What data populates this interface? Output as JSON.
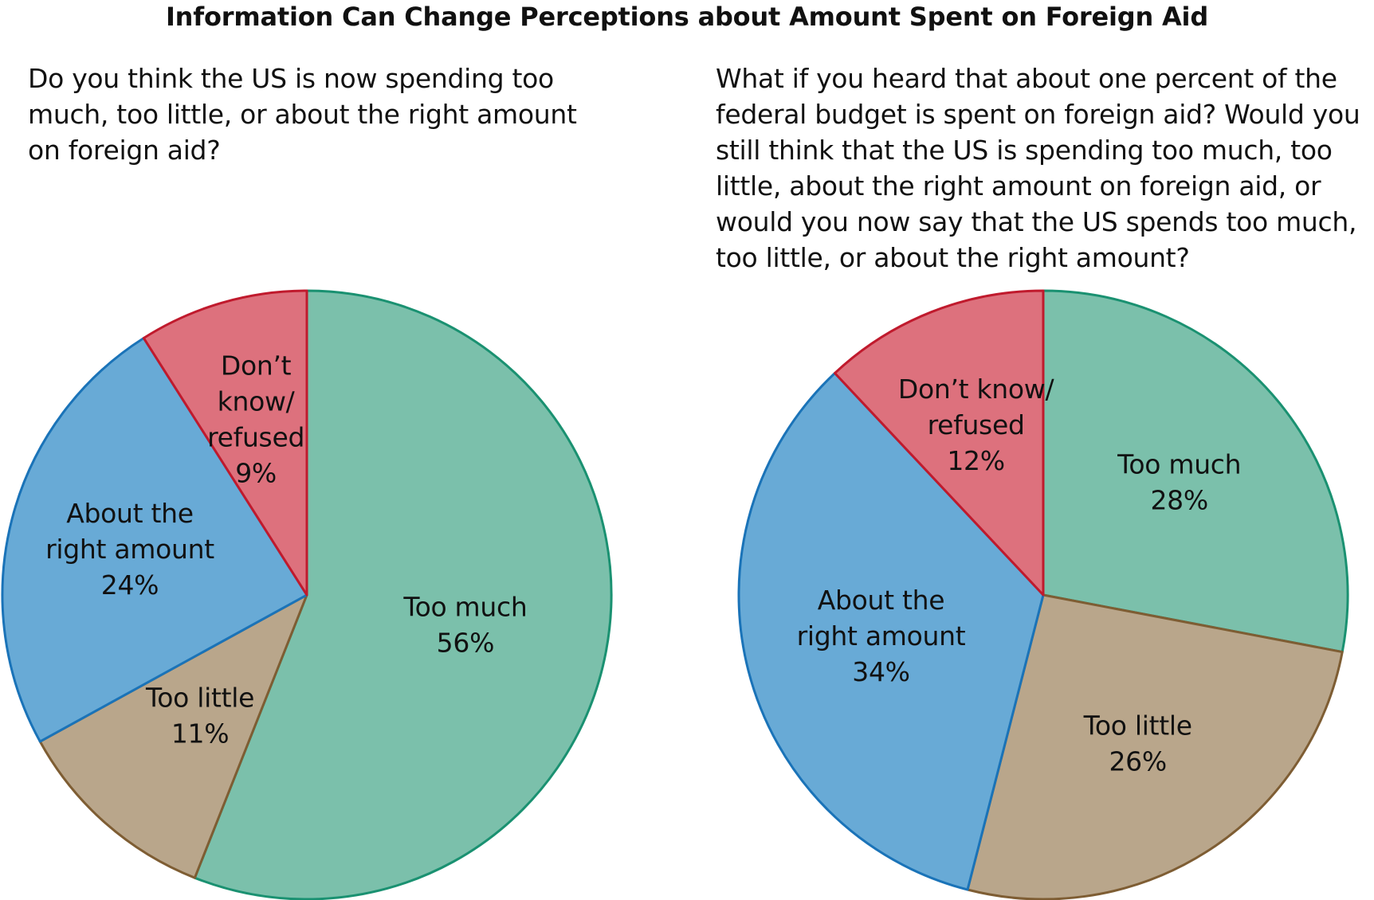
{
  "title": "Information Can Change Perceptions about Amount Spent on Foreign Aid",
  "chart_data": [
    {
      "type": "pie",
      "title": "Do you think the US is now spending too\nmuch, too little, or about the right amount\non foreign aid?",
      "slices": [
        {
          "label": [
            "Too much"
          ],
          "value": 56,
          "value_label": "56%",
          "fill": "#7bc0ab",
          "stroke": "#1a9171"
        },
        {
          "label": [
            "Too little"
          ],
          "value": 11,
          "value_label": "11%",
          "fill": "#b9a68b",
          "stroke": "#7e5d33"
        },
        {
          "label": [
            "About the",
            "right amount"
          ],
          "value": 24,
          "value_label": "24%",
          "fill": "#68aad6",
          "stroke": "#1a73b8"
        },
        {
          "label": [
            "Don’t",
            "know/",
            "refused"
          ],
          "value": 9,
          "value_label": "9%",
          "fill": "#dd717d",
          "stroke": "#c01a2d"
        }
      ]
    },
    {
      "type": "pie",
      "title": "What if you heard that about one percent of the\nfederal budget is spent on foreign aid? Would you\nstill think that the US is spending too much, too\nlittle, about the right amount on foreign aid, or\nwould you now say that the US spends too much,\ntoo little, or about the right amount?",
      "slices": [
        {
          "label": [
            "Too much"
          ],
          "value": 28,
          "value_label": "28%",
          "fill": "#7bc0ab",
          "stroke": "#1a9171"
        },
        {
          "label": [
            "Too little"
          ],
          "value": 26,
          "value_label": "26%",
          "fill": "#b9a68b",
          "stroke": "#7e5d33"
        },
        {
          "label": [
            "About the",
            "right amount"
          ],
          "value": 34,
          "value_label": "34%",
          "fill": "#68aad6",
          "stroke": "#1a73b8"
        },
        {
          "label": [
            "Don’t know/",
            "refused"
          ],
          "value": 12,
          "value_label": "12%",
          "fill": "#dd717d",
          "stroke": "#c01a2d"
        }
      ]
    }
  ]
}
